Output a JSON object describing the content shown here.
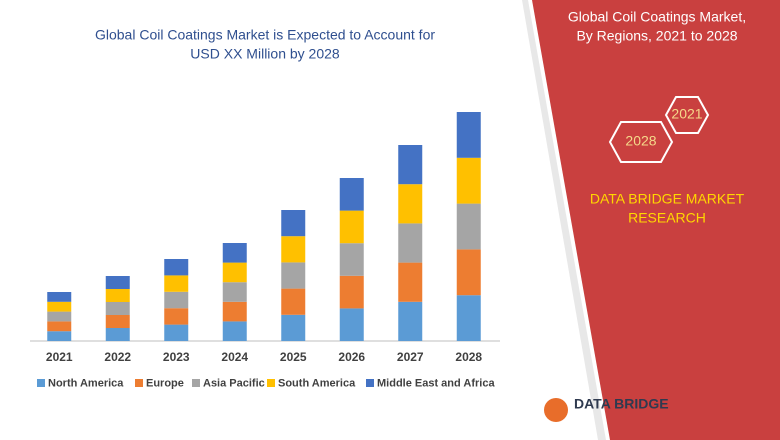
{
  "chart_data": {
    "type": "bar",
    "stacked": true,
    "title": [
      "Global Coil Coatings Market is Expected to Account for",
      "USD XX Million by 2028"
    ],
    "categories": [
      "2021",
      "2022",
      "2023",
      "2024",
      "2025",
      "2026",
      "2027",
      "2028"
    ],
    "series": [
      {
        "name": "North America",
        "color": "#5b9bd5",
        "values": [
          9.8,
          13,
          16.4,
          19.6,
          26.2,
          32.6,
          39.2,
          45.8
        ]
      },
      {
        "name": "Europe",
        "color": "#ed7d31",
        "values": [
          9.8,
          13,
          16.4,
          19.6,
          26.2,
          32.6,
          39.2,
          45.8
        ]
      },
      {
        "name": "Asia Pacific",
        "color": "#a5a5a5",
        "values": [
          9.8,
          13,
          16.4,
          19.6,
          26.2,
          32.6,
          39.2,
          45.8
        ]
      },
      {
        "name": "South America",
        "color": "#ffc000",
        "values": [
          9.8,
          13,
          16.4,
          19.6,
          26.2,
          32.6,
          39.2,
          45.8
        ]
      },
      {
        "name": "Middle East and Africa",
        "color": "#4472c4",
        "values": [
          9.8,
          13,
          16.4,
          19.6,
          26.2,
          32.6,
          39.2,
          45.8
        ]
      }
    ]
  },
  "panel": {
    "title": [
      "Global Coil Coatings Market,",
      "By Regions, 2021 to 2028"
    ],
    "hex_labels": [
      "2021",
      "2028"
    ],
    "brand": [
      "DATA BRIDGE MARKET",
      "RESEARCH"
    ]
  },
  "logo": "DATA BRIDGE"
}
